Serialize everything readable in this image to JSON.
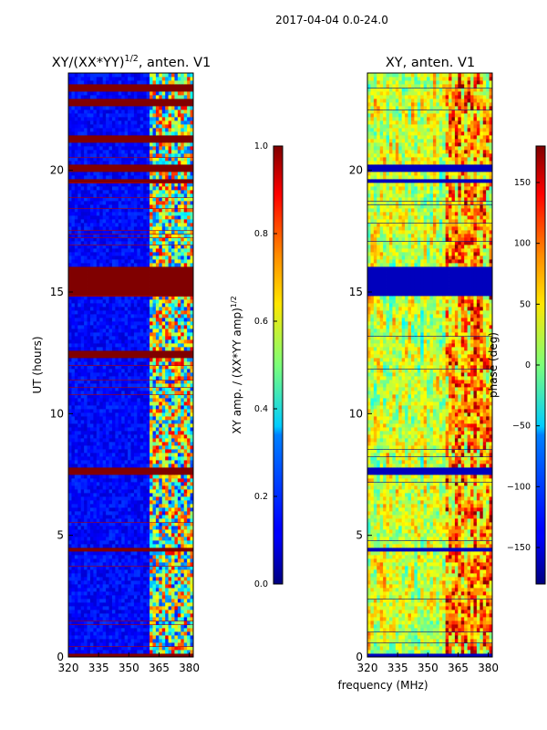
{
  "figure_title": "2017-04-04 0.0-24.0",
  "shared_xlabel": "frequency (MHz)",
  "chart_data": [
    {
      "type": "heatmap",
      "title": "XY/(XX*YY)",
      "title_sup": "1/2",
      "title_suffix": ", anten. V1",
      "xlabel": "",
      "ylabel": "UT (hours)",
      "xlim": [
        320,
        382
      ],
      "ylim": [
        0,
        24
      ],
      "xticks": [
        320,
        335,
        350,
        365,
        380
      ],
      "yticks": [
        0,
        5,
        10,
        15,
        20
      ],
      "colorbar": {
        "label": "XY amp. / (XX*YY amp)",
        "label_sup": "1/2",
        "range": [
          0.0,
          1.0
        ],
        "ticks": [
          "0.0",
          "0.2",
          "0.4",
          "0.6",
          "0.8",
          "1.0"
        ],
        "colormap": "jet"
      },
      "saturated_ut_bands": [
        [
          0.0,
          0.1
        ],
        [
          4.3,
          4.5
        ],
        [
          7.5,
          7.8
        ],
        [
          12.3,
          12.6
        ],
        [
          14.9,
          16.1
        ],
        [
          19.5,
          19.7
        ],
        [
          20.0,
          20.3
        ],
        [
          21.2,
          21.4
        ],
        [
          22.6,
          23.0
        ],
        [
          23.3,
          23.5
        ]
      ],
      "active_frequency_band_mhz": [
        360,
        382
      ]
    },
    {
      "type": "heatmap",
      "title": "XY, anten. V1",
      "xlabel": "",
      "ylabel": "",
      "xlim": [
        320,
        382
      ],
      "ylim": [
        0,
        24
      ],
      "xticks": [
        320,
        335,
        350,
        365,
        380
      ],
      "yticks": [
        0,
        5,
        10,
        15,
        20
      ],
      "colorbar": {
        "label": "phase (deg)",
        "range": [
          -180,
          180
        ],
        "ticks": [
          "-150",
          "-100",
          "-50",
          "0",
          "50",
          "100",
          "150"
        ],
        "colormap": "jet"
      },
      "flagged_ut_bands": [
        [
          0.0,
          0.1
        ],
        [
          4.3,
          4.5
        ],
        [
          7.5,
          7.8
        ],
        [
          14.9,
          16.1
        ],
        [
          19.5,
          19.7
        ],
        [
          20.0,
          20.3
        ]
      ]
    }
  ]
}
